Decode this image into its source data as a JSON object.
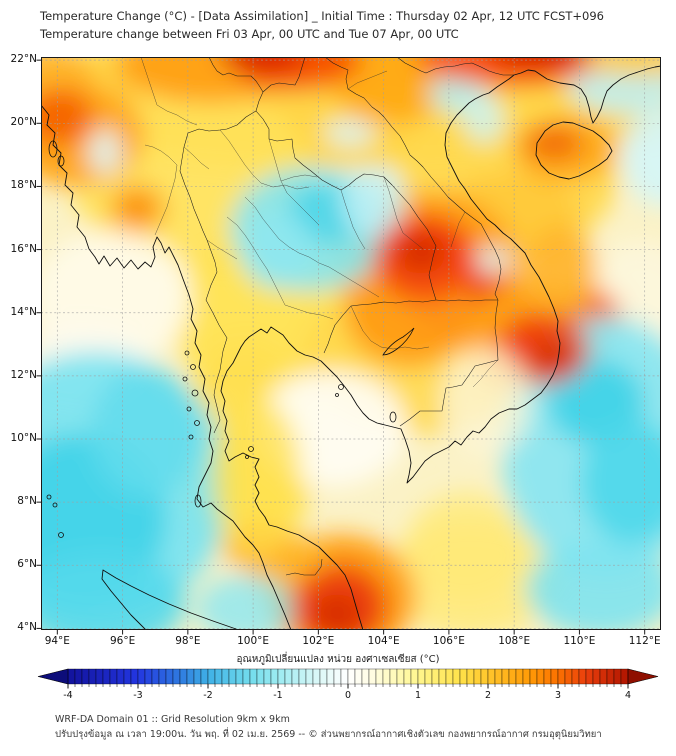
{
  "header": {
    "title_line1": "Temperature Change (°C) - [Data Assimilation] _ Initial Time : Thursday 02 Apr, 12 UTC FCST+096",
    "title_line2": "Temperature change between Fri 03 Apr, 00 UTC and Tue 07 Apr, 00 UTC"
  },
  "map": {
    "extent": {
      "lon_min": 93.5,
      "lon_max": 112.5,
      "lat_min": 3.95,
      "lat_max": 22.1
    },
    "lon_ticks": [
      {
        "v": 94,
        "label": "94°E"
      },
      {
        "v": 96,
        "label": "96°E"
      },
      {
        "v": 98,
        "label": "98°E"
      },
      {
        "v": 100,
        "label": "100°E"
      },
      {
        "v": 102,
        "label": "102°E"
      },
      {
        "v": 104,
        "label": "104°E"
      },
      {
        "v": 106,
        "label": "106°E"
      },
      {
        "v": 108,
        "label": "108°E"
      },
      {
        "v": 110,
        "label": "110°E"
      },
      {
        "v": 112,
        "label": "112°E"
      }
    ],
    "lat_ticks": [
      {
        "v": 22,
        "label": "22°N"
      },
      {
        "v": 20,
        "label": "20°N"
      },
      {
        "v": 18,
        "label": "18°N"
      },
      {
        "v": 16,
        "label": "16°N"
      },
      {
        "v": 14,
        "label": "14°N"
      },
      {
        "v": 12,
        "label": "12°N"
      },
      {
        "v": 10,
        "label": "10°N"
      },
      {
        "v": 8,
        "label": "8°N"
      },
      {
        "v": 6,
        "label": "6°N"
      },
      {
        "v": 4,
        "label": "4°N"
      }
    ]
  },
  "field": {
    "base": "#fbf2c6",
    "blobs": [
      [
        310,
        40,
        360,
        70,
        "#ffd646",
        1
      ],
      [
        150,
        120,
        120,
        90,
        "#ffe25a",
        0.9
      ],
      [
        240,
        262,
        110,
        88,
        "#ffe24e",
        0.9
      ],
      [
        205,
        395,
        70,
        110,
        "#ffe050",
        0.9
      ],
      [
        468,
        118,
        110,
        78,
        "#ffd94e",
        0.95
      ],
      [
        380,
        300,
        120,
        78,
        "#ffd94e",
        0.9
      ],
      [
        470,
        160,
        70,
        45,
        "#ffc93a",
        0.9
      ],
      [
        430,
        522,
        90,
        58,
        "#ffea7a",
        0.85
      ],
      [
        600,
        242,
        58,
        58,
        "#fdf7dd",
        0.9
      ],
      [
        70,
        242,
        80,
        68,
        "#fffbe8",
        0.95
      ],
      [
        290,
        372,
        75,
        58,
        "#fffdf2",
        0.95
      ],
      [
        40,
        312,
        70,
        44,
        "#fdfaee",
        0.9
      ],
      [
        170,
        8,
        95,
        38,
        "#ffa312",
        1
      ],
      [
        255,
        2,
        65,
        32,
        "#f64a00",
        1
      ],
      [
        222,
        -4,
        42,
        22,
        "#d82600",
        1
      ],
      [
        350,
        8,
        120,
        32,
        "#ffae16",
        1
      ],
      [
        470,
        0,
        95,
        30,
        "#f85200",
        1
      ],
      [
        500,
        -8,
        52,
        20,
        "#cf1d00",
        1
      ],
      [
        588,
        14,
        48,
        24,
        "#ffb42a",
        0.95
      ],
      [
        10,
        28,
        45,
        38,
        "#ffb32a",
        0.95
      ],
      [
        35,
        78,
        68,
        52,
        "#ffa71c",
        1
      ],
      [
        18,
        60,
        34,
        28,
        "#f66600",
        1
      ],
      [
        96,
        152,
        30,
        26,
        "#ffb32a",
        0.95
      ],
      [
        96,
        151,
        17,
        14,
        "#fb8b00",
        1
      ],
      [
        524,
        92,
        52,
        33,
        "#ffab1c",
        1
      ],
      [
        513,
        86,
        28,
        17,
        "#f26d00",
        1
      ],
      [
        350,
        30,
        55,
        38,
        "#ffab17",
        0.95
      ],
      [
        390,
        215,
        90,
        80,
        "#ffa013",
        1
      ],
      [
        384,
        202,
        52,
        44,
        "#f4430a",
        1
      ],
      [
        380,
        196,
        25,
        21,
        "#d62b00",
        1
      ],
      [
        420,
        245,
        48,
        42,
        "#f04a08",
        0.95
      ],
      [
        368,
        255,
        65,
        55,
        "#ff9d14",
        0.9
      ],
      [
        495,
        282,
        72,
        56,
        "#ffa013",
        1
      ],
      [
        502,
        292,
        46,
        36,
        "#f1440b",
        1
      ],
      [
        512,
        300,
        23,
        18,
        "#d92f00",
        1
      ],
      [
        548,
        262,
        32,
        30,
        "#f55d0d",
        0.9
      ],
      [
        520,
        215,
        36,
        46,
        "#ffb32a",
        0.9
      ],
      [
        300,
        540,
        75,
        62,
        "#ffa013",
        1
      ],
      [
        298,
        549,
        48,
        42,
        "#ee4309",
        1
      ],
      [
        296,
        557,
        24,
        20,
        "#d52e00",
        1
      ],
      [
        217,
        488,
        32,
        24,
        "#ff9a12",
        0.95
      ],
      [
        246,
        507,
        42,
        30,
        "#ffb62a",
        0.9
      ],
      [
        55,
        430,
        135,
        135,
        "#7ce4f0",
        0.95
      ],
      [
        40,
        462,
        85,
        85,
        "#3fd3e8",
        0.9
      ],
      [
        105,
        375,
        55,
        65,
        "#62dcec",
        0.85
      ],
      [
        60,
        546,
        85,
        50,
        "#55d9eb",
        0.9
      ],
      [
        205,
        552,
        50,
        34,
        "#8ce7f1",
        0.8
      ],
      [
        270,
        172,
        80,
        62,
        "#86e5f0",
        0.9
      ],
      [
        287,
        157,
        42,
        30,
        "#44d4e7",
        0.85
      ],
      [
        237,
        192,
        38,
        40,
        "#8fe7f1",
        0.8
      ],
      [
        332,
        145,
        32,
        36,
        "#c3f1f6",
        0.85
      ],
      [
        309,
        76,
        26,
        13,
        "#d9f6f8",
        0.9
      ],
      [
        64,
        95,
        17,
        23,
        "#dff7f8",
        0.9
      ],
      [
        417,
        36,
        28,
        20,
        "#b4eff5",
        0.9
      ],
      [
        443,
        62,
        20,
        24,
        "#cdf4f8",
        0.85
      ],
      [
        585,
        25,
        60,
        32,
        "#c0f1f6",
        0.9
      ],
      [
        625,
        100,
        45,
        50,
        "#d4f6f8",
        0.9
      ],
      [
        565,
        390,
        105,
        130,
        "#8ae6f1",
        0.95
      ],
      [
        555,
        345,
        48,
        42,
        "#3ed2e7",
        0.9
      ],
      [
        592,
        425,
        52,
        62,
        "#4cd7ea",
        0.9
      ],
      [
        560,
        532,
        75,
        48,
        "#7ee3ef",
        0.9
      ],
      [
        452,
        203,
        18,
        13,
        "#dcf7f8",
        0.9
      ],
      [
        255,
        2,
        65,
        30,
        "#f64a00",
        0.9
      ],
      [
        222,
        -4,
        42,
        20,
        "#d82600",
        0.9
      ],
      [
        470,
        0,
        95,
        28,
        "#f85200",
        0.9
      ],
      [
        500,
        -8,
        52,
        18,
        "#cf1d00",
        0.9
      ],
      [
        600,
        2,
        60,
        16,
        "#ffc62c",
        0.9
      ],
      [
        384,
        202,
        52,
        44,
        "#f4430a",
        0.85
      ],
      [
        380,
        196,
        25,
        21,
        "#d62b00",
        0.9
      ],
      [
        513,
        86,
        28,
        17,
        "#f26d00",
        0.75
      ],
      [
        502,
        292,
        46,
        36,
        "#f1440b",
        0.8
      ],
      [
        512,
        300,
        23,
        18,
        "#d92f00",
        0.9
      ],
      [
        298,
        549,
        48,
        42,
        "#ee4309",
        0.8
      ],
      [
        296,
        557,
        24,
        20,
        "#d52e00",
        0.9
      ],
      [
        215,
        420,
        45,
        80,
        "#ffe14e",
        0.8
      ],
      [
        425,
        490,
        60,
        55,
        "#ffe975",
        0.75
      ],
      [
        445,
        345,
        45,
        55,
        "#fdf6d8",
        0.8
      ]
    ]
  },
  "colorbar": {
    "label": "อุณหภูมิเปลี่ยนแปลง หน่วย องศาเซลเซียส (°C)",
    "min": -4,
    "max": 4,
    "step": 0.1,
    "tick_labels": [
      "-4",
      "-3",
      "-2",
      "-1",
      "0",
      "1",
      "2",
      "3",
      "4"
    ],
    "stops": [
      [
        -4,
        "#12129c"
      ],
      [
        -3,
        "#2336e0"
      ],
      [
        -2.4,
        "#2f7ae0"
      ],
      [
        -2,
        "#3fb0e6"
      ],
      [
        -1.4,
        "#72dcec"
      ],
      [
        -1,
        "#9cebf1"
      ],
      [
        -0.4,
        "#ddf8f7"
      ],
      [
        0,
        "#ffffff"
      ],
      [
        0.4,
        "#fffcdd"
      ],
      [
        1,
        "#fff68e"
      ],
      [
        1.6,
        "#ffe24a"
      ],
      [
        2,
        "#ffc62c"
      ],
      [
        2.6,
        "#ff9a07"
      ],
      [
        3,
        "#fb7100"
      ],
      [
        3.4,
        "#ea3f0c"
      ],
      [
        4,
        "#b01400"
      ]
    ],
    "arrow_left": "#0d0d7a",
    "arrow_right": "#8f0f00"
  },
  "footer": {
    "line1": "WRF-DA Domain 01 :: Grid Resolution 9km x 9km",
    "line2": "ปรับปรุงข้อมูล ณ เวลา 19:00น. วัน พฤ. ที่ 02 เม.ย. 2569 -- © ส่วนพยากรณ์อากาศเชิงตัวเลข กองพยากรณ์อากาศ กรมอุตุนิยมวิทยา"
  },
  "chart_data": {
    "type": "heatmap",
    "title": "Temperature Change (°C) - [Data Assimilation] _ Initial Time : Thursday 02 Apr, 12 UTC FCST+096",
    "subtitle": "Temperature change between Fri 03 Apr, 00 UTC and Tue 07 Apr, 00 UTC",
    "x_axis": {
      "ticks": [
        "94°E",
        "96°E",
        "98°E",
        "100°E",
        "102°E",
        "104°E",
        "106°E",
        "108°E",
        "110°E",
        "112°E"
      ],
      "range_deg": [
        93.5,
        112.5
      ]
    },
    "y_axis": {
      "ticks": [
        "22°N",
        "20°N",
        "18°N",
        "16°N",
        "14°N",
        "12°N",
        "10°N",
        "8°N",
        "6°N",
        "4°N"
      ],
      "range_deg": [
        3.95,
        22.1
      ]
    },
    "colorbar": {
      "label": "อุณหภูมิเปลี่ยนแปลง หน่วย องศาเซลเซียส (°C)",
      "range": [
        -4,
        4
      ],
      "tick_step": 1,
      "units": "°C"
    },
    "grid": true,
    "legend_position": "bottom",
    "anomaly_centers": [
      {
        "lon": 102.3,
        "lat": 22.0,
        "value": 3.5,
        "sign": "warm"
      },
      {
        "lon": 106.6,
        "lat": 22.0,
        "value": 3.5,
        "sign": "warm"
      },
      {
        "lon": 94.3,
        "lat": 20.3,
        "value": 2.5,
        "sign": "warm"
      },
      {
        "lon": 109.3,
        "lat": 19.3,
        "value": 2.5,
        "sign": "warm"
      },
      {
        "lon": 105.3,
        "lat": 15.9,
        "value": 3.0,
        "sign": "warm"
      },
      {
        "lon": 107.6,
        "lat": 12.9,
        "value": 3.0,
        "sign": "warm"
      },
      {
        "lon": 102.6,
        "lat": 4.6,
        "value": 3.0,
        "sign": "warm"
      },
      {
        "lon": 100.3,
        "lat": 7.1,
        "value": 2.0,
        "sign": "warm"
      },
      {
        "lon": 96.5,
        "lat": 17.3,
        "value": 2.0,
        "sign": "warm"
      },
      {
        "lon": 102.2,
        "lat": 17.3,
        "value": -1.0,
        "sign": "cool"
      },
      {
        "lon": 94.8,
        "lat": 8.0,
        "value": -1.5,
        "sign": "cool"
      },
      {
        "lon": 110.9,
        "lat": 11.0,
        "value": -1.5,
        "sign": "cool"
      },
      {
        "lon": 111.5,
        "lat": 21.3,
        "value": -0.5,
        "sign": "cool"
      }
    ]
  }
}
